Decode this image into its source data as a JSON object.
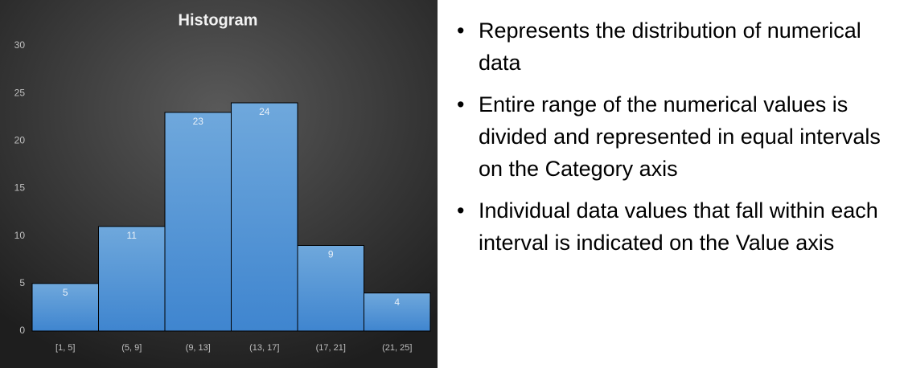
{
  "chart_data": {
    "type": "histogram",
    "title": "Histogram",
    "categories": [
      "[1, 5]",
      "(5, 9]",
      "(9, 13]",
      "(13, 17]",
      "(17, 21]",
      "(21, 25]"
    ],
    "values": [
      5,
      11,
      23,
      24,
      9,
      4
    ],
    "color": "#5b9bd5",
    "ylim": [
      0,
      30
    ],
    "yticks": [
      0,
      5,
      10,
      15,
      20,
      25,
      30
    ],
    "grid": false
  },
  "bullets": [
    "Represents the distribution of numerical data",
    "Entire range of the numerical values is divided and represented in equal intervals on the Category axis",
    "Individual data values that fall within each interval is indicated on the Value axis"
  ]
}
